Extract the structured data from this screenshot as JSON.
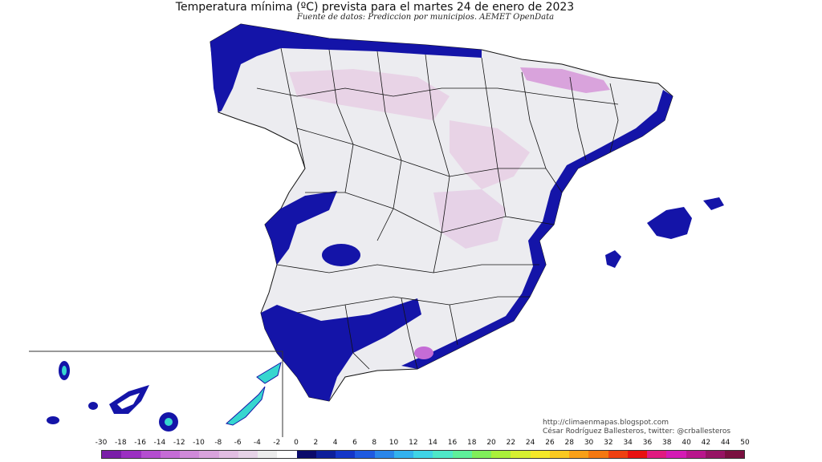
{
  "title": "Temperatura mínima (ºC) prevista para el martes 24 de enero de 2023",
  "subtitle": "Fuente de datos: Prediccion por municipios. AEMET OpenData",
  "credits": {
    "line1": "http://climaenmapas.blogspot.com",
    "line2": "César Rodríguez Ballesteros, twitter: @crballesteros"
  },
  "legend": {
    "labels": [
      "-30",
      "-18",
      "-16",
      "-14",
      "-12",
      "-10",
      "-8",
      "-6",
      "-4",
      "-2",
      "0",
      "2",
      "4",
      "6",
      "8",
      "10",
      "12",
      "14",
      "16",
      "18",
      "20",
      "22",
      "24",
      "26",
      "28",
      "30",
      "32",
      "34",
      "36",
      "38",
      "40",
      "42",
      "44",
      "50"
    ],
    "colors": [
      "#7a1fa8",
      "#9b2fc1",
      "#b44dd0",
      "#c56cd6",
      "#d08ad9",
      "#d9a3dc",
      "#e1bde2",
      "#e6d2e7",
      "#ececec",
      "#ffffff",
      "#0a0a6a",
      "#0d1f9a",
      "#1436c8",
      "#1f5ae0",
      "#2a86ea",
      "#33b2ee",
      "#3fd4e6",
      "#4ee8c8",
      "#5ef09a",
      "#80ee5a",
      "#aaf03a",
      "#d6f030",
      "#f4e828",
      "#f8c820",
      "#f8a018",
      "#f47810",
      "#ee4010",
      "#e81010",
      "#e01a80",
      "#d41ab4",
      "#b8168c",
      "#961464",
      "#7a1040"
    ]
  },
  "map": {
    "inset_region": "Canarias",
    "cold_zone_color": "#e8d3e6",
    "mild_zone_color": "#ececf0",
    "coast_color": "#1414a8",
    "canary_color": "#36d6cf"
  }
}
